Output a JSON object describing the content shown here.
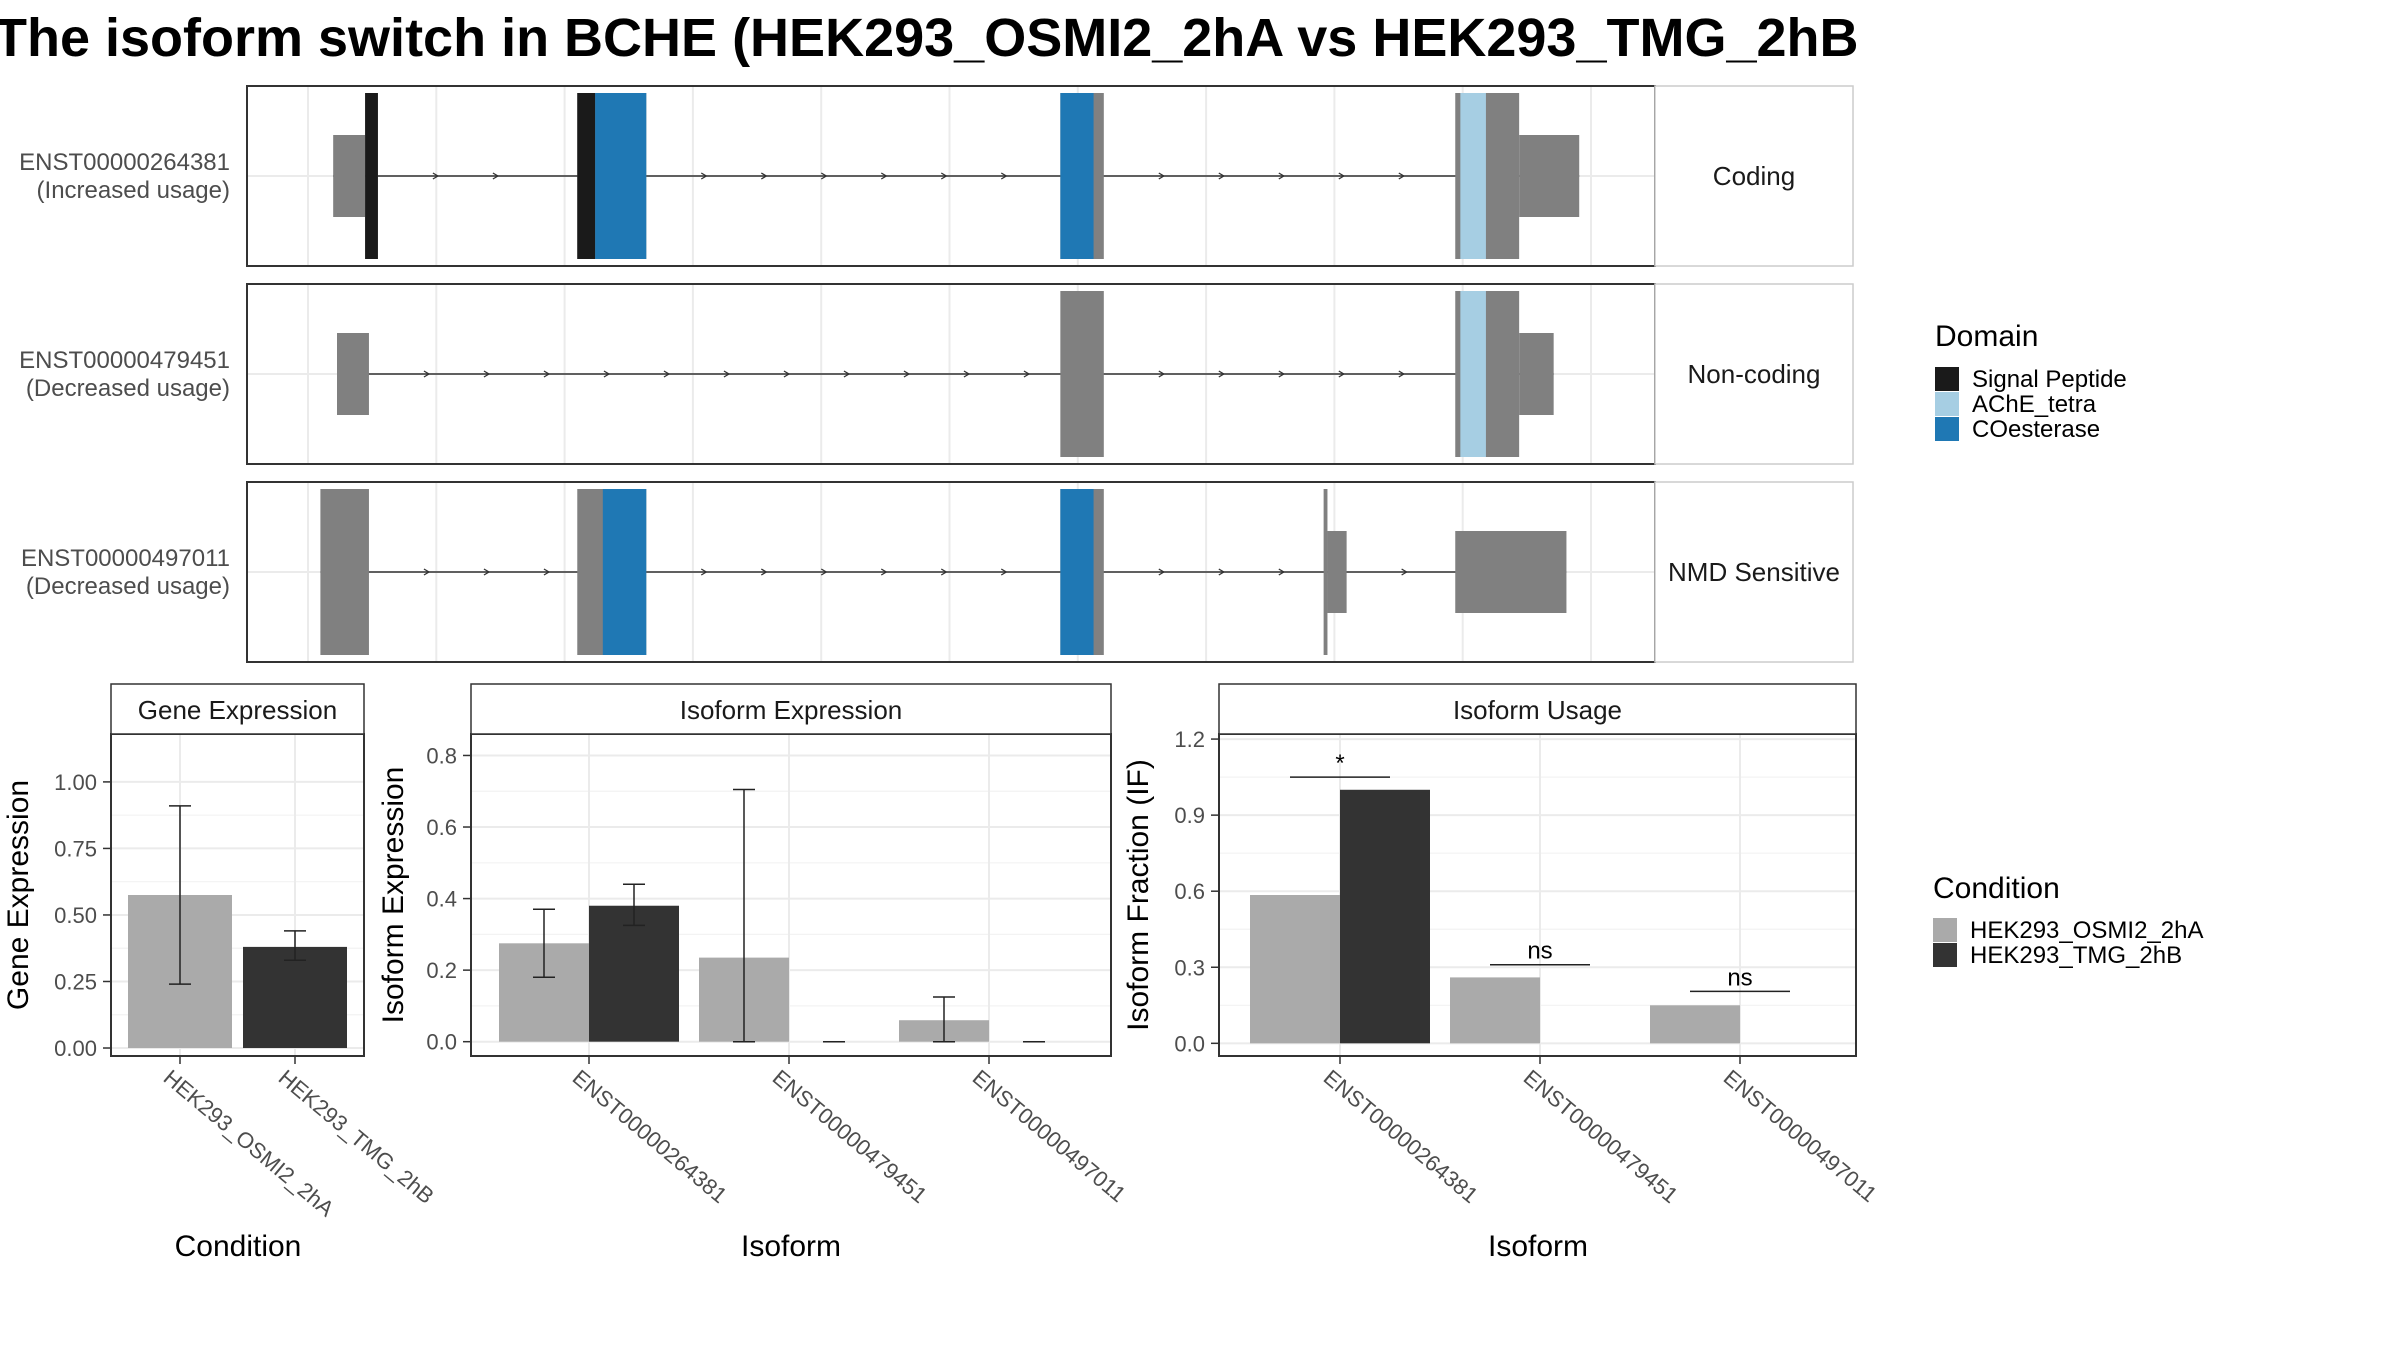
{
  "title": "The isoform switch in BCHE (HEK293_OSMI2_2hA vs HEK293_TMG_2hB",
  "colors": {
    "exon": "#808080",
    "signal_peptide": "#1a1a1a",
    "ache_tetra": "#a6cee3",
    "coesterase": "#1f78b4",
    "cond_a": "#aaaaaa",
    "cond_b": "#333333",
    "grid": "#ebebeb",
    "panel_border": "#333333"
  },
  "domain_legend": {
    "title": "Domain",
    "items": [
      {
        "label": "Signal Peptide",
        "color": "#1a1a1a"
      },
      {
        "label": "AChE_tetra",
        "color": "#a6cee3"
      },
      {
        "label": "COesterase",
        "color": "#1f78b4"
      }
    ]
  },
  "condition_legend": {
    "title": "Condition",
    "items": [
      {
        "label": "HEK293_OSMI2_2hA",
        "color": "#aaaaaa"
      },
      {
        "label": "HEK293_TMG_2hB",
        "color": "#333333"
      }
    ]
  },
  "chart_data": [
    {
      "type": "gene-structure",
      "genomic_range": [
        0,
        1000
      ],
      "transcripts": [
        {
          "id": "ENST00000264381",
          "label_line1": "ENST00000264381",
          "label_line2": "(Increased usage)",
          "category": "Coding",
          "exons": [
            {
              "start": 15,
              "end": 40,
              "coding": false
            },
            {
              "start": 40,
              "end": 50,
              "coding": true
            },
            {
              "start": 206,
              "end": 260,
              "coding": true
            },
            {
              "start": 584,
              "end": 618,
              "coding": true
            },
            {
              "start": 893,
              "end": 943,
              "coding": true
            },
            {
              "start": 943,
              "end": 990,
              "coding": false
            }
          ],
          "domains": [
            {
              "start": 40,
              "end": 50,
              "domain": "Signal Peptide"
            },
            {
              "start": 206,
              "end": 220,
              "domain": "Signal Peptide"
            },
            {
              "start": 220,
              "end": 260,
              "domain": "COesterase"
            },
            {
              "start": 584,
              "end": 610,
              "domain": "COesterase"
            },
            {
              "start": 897,
              "end": 917,
              "domain": "AChE_tetra"
            }
          ]
        },
        {
          "id": "ENST00000479451",
          "label_line1": "ENST00000479451",
          "label_line2": "(Decreased usage)",
          "category": "Non-coding",
          "exons": [
            {
              "start": 18,
              "end": 43,
              "coding": false
            },
            {
              "start": 584,
              "end": 618,
              "coding": true
            },
            {
              "start": 893,
              "end": 943,
              "coding": true
            },
            {
              "start": 943,
              "end": 970,
              "coding": false
            }
          ],
          "domains": [
            {
              "start": 897,
              "end": 917,
              "domain": "AChE_tetra"
            }
          ]
        },
        {
          "id": "ENST00000497011",
          "label_line1": "ENST00000497011",
          "label_line2": "(Decreased usage)",
          "category": "NMD Sensitive",
          "exons": [
            {
              "start": 5,
              "end": 43,
              "coding": true
            },
            {
              "start": 206,
              "end": 260,
              "coding": true
            },
            {
              "start": 584,
              "end": 618,
              "coding": true
            },
            {
              "start": 790,
              "end": 793,
              "coding": true
            },
            {
              "start": 793,
              "end": 808,
              "coding": false
            },
            {
              "start": 893,
              "end": 980,
              "coding": false
            }
          ],
          "domains": [
            {
              "start": 226,
              "end": 260,
              "domain": "COesterase"
            },
            {
              "start": 584,
              "end": 610,
              "domain": "COesterase"
            }
          ]
        }
      ]
    },
    {
      "type": "bar",
      "title": "Gene Expression",
      "xlabel": "Condition",
      "ylabel": "Gene Expression",
      "ylim": [
        -0.03,
        1.18
      ],
      "yticks": [
        0.0,
        0.25,
        0.5,
        0.75,
        1.0
      ],
      "ytick_labels": [
        "0.00",
        "0.25",
        "0.50",
        "0.75",
        "1.00"
      ],
      "categories": [
        "HEK293_OSMI2_2hA",
        "HEK293_TMG_2hB"
      ],
      "values": [
        0.575,
        0.38
      ],
      "error_low": [
        0.24,
        0.33
      ],
      "error_high": [
        0.91,
        0.44
      ],
      "colors": [
        "#aaaaaa",
        "#333333"
      ]
    },
    {
      "type": "bar",
      "title": "Isoform Expression",
      "xlabel": "Isoform",
      "ylabel": "Isoform Expression",
      "ylim": [
        -0.04,
        0.86
      ],
      "yticks": [
        0.0,
        0.2,
        0.4,
        0.6,
        0.8
      ],
      "ytick_labels": [
        "0.0",
        "0.2",
        "0.4",
        "0.6",
        "0.8"
      ],
      "categories": [
        "ENST00000264381",
        "ENST00000479451",
        "ENST00000497011"
      ],
      "series": [
        {
          "name": "HEK293_OSMI2_2hA",
          "values": [
            0.275,
            0.235,
            0.06
          ],
          "error_low": [
            0.18,
            0.0,
            0.0
          ],
          "error_high": [
            0.37,
            0.705,
            0.125
          ]
        },
        {
          "name": "HEK293_TMG_2hB",
          "values": [
            0.38,
            0.0,
            0.0
          ],
          "error_low": [
            0.325,
            0.0,
            0.0
          ],
          "error_high": [
            0.44,
            0.0,
            0.0
          ]
        }
      ]
    },
    {
      "type": "bar",
      "title": "Isoform Usage",
      "xlabel": "Isoform",
      "ylabel": "Isoform Fraction (IF)",
      "ylim": [
        -0.05,
        1.22
      ],
      "yticks": [
        0.0,
        0.3,
        0.6,
        0.9,
        1.2
      ],
      "ytick_labels": [
        "0.0",
        "0.3",
        "0.6",
        "0.9",
        "1.2"
      ],
      "categories": [
        "ENST00000264381",
        "ENST00000479451",
        "ENST00000497011"
      ],
      "series": [
        {
          "name": "HEK293_OSMI2_2hA",
          "values": [
            0.585,
            0.26,
            0.15
          ]
        },
        {
          "name": "HEK293_TMG_2hB",
          "values": [
            1.0,
            0.0,
            0.0
          ]
        }
      ],
      "significance": [
        {
          "category": "ENST00000264381",
          "label": "*",
          "y": 1.05
        },
        {
          "category": "ENST00000479451",
          "label": "ns",
          "y": 0.31
        },
        {
          "category": "ENST00000497011",
          "label": "ns",
          "y": 0.205
        }
      ]
    }
  ]
}
